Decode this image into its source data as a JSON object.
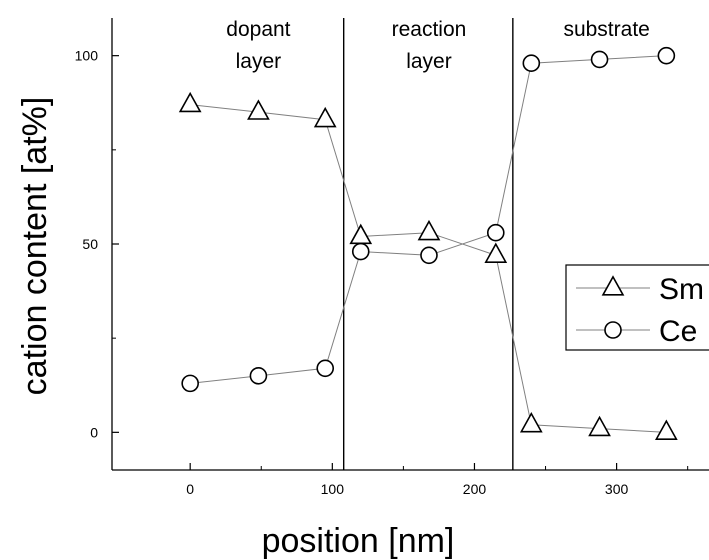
{
  "chart_data": {
    "type": "scatter",
    "xlabel": "position [nm]",
    "ylabel": "cation content [at%]",
    "xlim": [
      -55,
      365
    ],
    "ylim": [
      -10,
      110
    ],
    "xticks": [
      0,
      100,
      200,
      300
    ],
    "yticks": [
      0,
      50,
      100
    ],
    "grid": false,
    "legend_position": "right",
    "series": [
      {
        "name": "Sm",
        "marker": "triangle",
        "x": [
          0,
          48,
          95,
          120,
          168,
          215,
          240,
          288,
          335
        ],
        "y": [
          87,
          85,
          83,
          52,
          53,
          47,
          2,
          1,
          0
        ]
      },
      {
        "name": "Ce",
        "marker": "circle",
        "x": [
          0,
          48,
          95,
          120,
          168,
          215,
          240,
          288,
          335
        ],
        "y": [
          13,
          15,
          17,
          48,
          47,
          53,
          98,
          99,
          100
        ]
      }
    ],
    "boundaries": [
      108,
      227
    ],
    "regions": [
      {
        "lines": [
          "dopant",
          "layer"
        ],
        "x": 48
      },
      {
        "lines": [
          "reaction",
          "layer"
        ],
        "x": 168
      },
      {
        "lines": [
          "substrate"
        ],
        "x": 293
      }
    ]
  }
}
